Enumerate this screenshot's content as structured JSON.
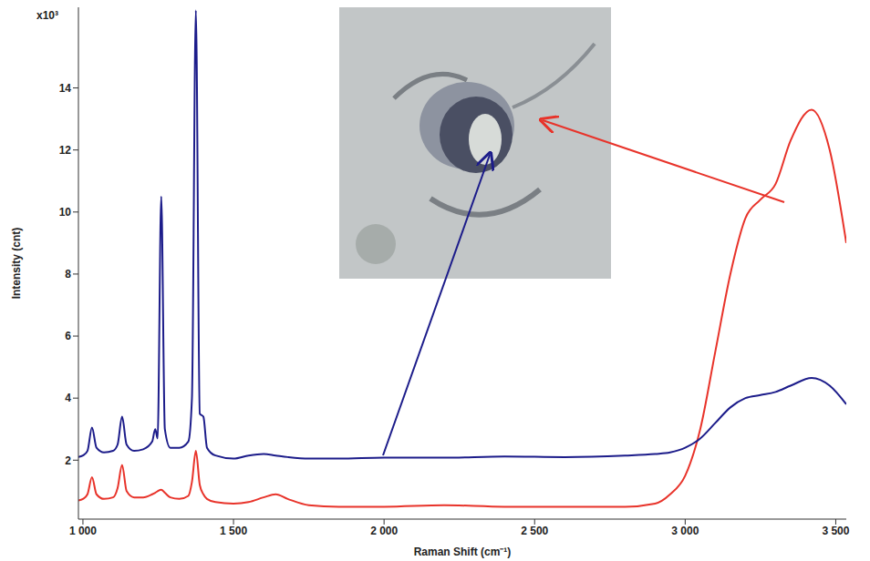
{
  "chart_data": {
    "type": "line",
    "annotations": [
      "x10³"
    ],
    "x_label": "Raman Shift (cm⁻¹)",
    "y_label": "Intensity (cnt)",
    "grid": false,
    "xlim": [
      985,
      3535
    ],
    "ylim": [
      0.1,
      16.6
    ],
    "xticks": [
      {
        "value": 1000,
        "label": "1 000"
      },
      {
        "value": 1500,
        "label": "1 500"
      },
      {
        "value": 2000,
        "label": "2 000"
      },
      {
        "value": 2500,
        "label": "2 500"
      },
      {
        "value": 3000,
        "label": "3 000"
      },
      {
        "value": 3500,
        "label": "3 500"
      }
    ],
    "yticks": [
      2,
      4,
      6,
      8,
      10,
      12,
      14
    ],
    "x": [
      985,
      1000,
      1015,
      1030,
      1045,
      1070,
      1100,
      1115,
      1130,
      1145,
      1170,
      1200,
      1230,
      1240,
      1248,
      1260,
      1272,
      1290,
      1320,
      1350,
      1362,
      1375,
      1388,
      1400,
      1412,
      1440,
      1500,
      1550,
      1600,
      1640,
      1680,
      1750,
      1850,
      2000,
      2200,
      2400,
      2600,
      2800,
      2900,
      2950,
      3000,
      3050,
      3100,
      3150,
      3200,
      3250,
      3300,
      3350,
      3420,
      3480,
      3535
    ],
    "series": [
      {
        "color": "#1c1c8a",
        "values": [
          2.1,
          2.15,
          2.3,
          3.05,
          2.4,
          2.25,
          2.3,
          2.5,
          3.4,
          2.5,
          2.3,
          2.35,
          2.6,
          3.0,
          2.7,
          10.5,
          3.0,
          2.4,
          2.4,
          2.6,
          4.0,
          16.5,
          3.5,
          3.4,
          2.4,
          2.15,
          2.05,
          2.15,
          2.2,
          2.15,
          2.1,
          2.05,
          2.05,
          2.08,
          2.08,
          2.12,
          2.1,
          2.15,
          2.2,
          2.25,
          2.4,
          2.7,
          3.2,
          3.7,
          4.0,
          4.1,
          4.2,
          4.4,
          4.65,
          4.4,
          3.8
        ]
      },
      {
        "color": "#e8332a",
        "values": [
          0.7,
          0.75,
          0.9,
          1.45,
          0.9,
          0.75,
          0.8,
          1.1,
          1.85,
          1.0,
          0.8,
          0.8,
          0.9,
          0.95,
          1.0,
          1.05,
          0.95,
          0.8,
          0.75,
          0.85,
          1.3,
          2.3,
          1.2,
          0.9,
          0.75,
          0.65,
          0.6,
          0.65,
          0.8,
          0.9,
          0.75,
          0.55,
          0.5,
          0.5,
          0.55,
          0.5,
          0.5,
          0.5,
          0.6,
          0.9,
          1.5,
          3.0,
          5.5,
          8.0,
          9.8,
          10.4,
          10.9,
          12.3,
          13.3,
          12.0,
          9.0
        ]
      }
    ]
  }
}
